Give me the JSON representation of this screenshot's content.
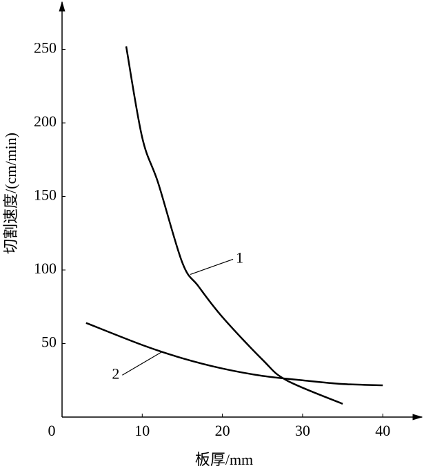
{
  "chart_data": {
    "type": "line",
    "x_label": "板厚/mm",
    "y_label": "切割速度/(cm/min)",
    "xlim": [
      0,
      44.7
    ],
    "ylim": [
      0,
      281
    ],
    "xticks": [
      0,
      10,
      20,
      30,
      40
    ],
    "yticks": [
      50,
      100,
      150,
      200,
      250
    ],
    "series": [
      {
        "name": "1",
        "color": "#000000",
        "x": [
          8,
          10,
          12,
          15,
          17,
          20,
          25,
          28,
          35
        ],
        "values": [
          252,
          190,
          159,
          105,
          89,
          68,
          39,
          25,
          9
        ]
      },
      {
        "name": "2",
        "color": "#000000",
        "x": [
          3,
          10,
          15,
          20,
          25,
          30,
          35,
          40
        ],
        "values": [
          64,
          49,
          40,
          33,
          28,
          25,
          22.5,
          21.6
        ]
      }
    ]
  }
}
